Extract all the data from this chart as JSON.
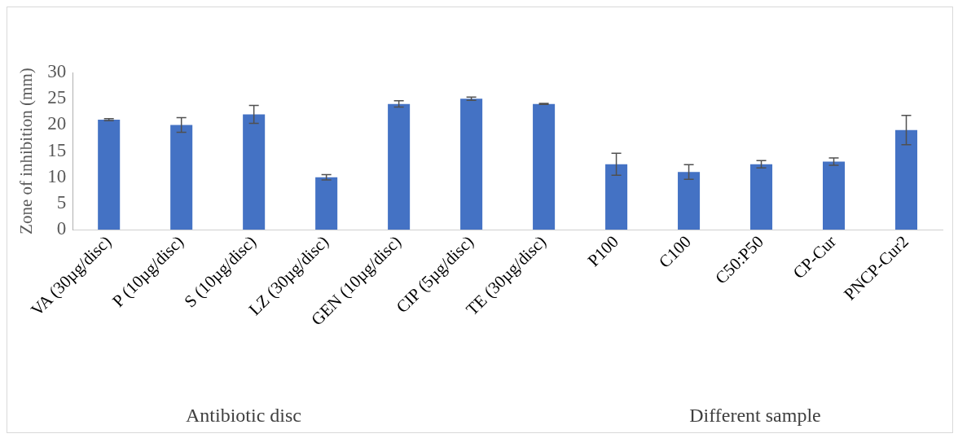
{
  "chart_data": {
    "type": "bar",
    "ylabel": "Zone of inhibition (mm)",
    "categories": [
      "VA (30µg/disc)",
      "P (10µg/disc)",
      "S (10µg/disc)",
      "LZ (30µg/disc)",
      "GEN (10µg/disc)",
      "CIP (5µg/disc)",
      "TE (30µg/disc)",
      "P100",
      "C100",
      "C50:P50",
      "CP-Cur",
      "PNCP-Cur2"
    ],
    "values": [
      21,
      20,
      22,
      10,
      24,
      25,
      24,
      12.5,
      11,
      12.5,
      13,
      19
    ],
    "errors": [
      0.2,
      1.4,
      1.7,
      0.5,
      0.6,
      0.3,
      0.1,
      2.1,
      1.4,
      0.7,
      0.7,
      2.8
    ],
    "color": "#4472c4",
    "ylim": [
      0,
      30
    ],
    "yticks": [
      0,
      5,
      10,
      15,
      20,
      25,
      30
    ],
    "grid": false,
    "legend": false,
    "annotations": [
      "Antibiotic disc",
      "Different sample"
    ]
  }
}
